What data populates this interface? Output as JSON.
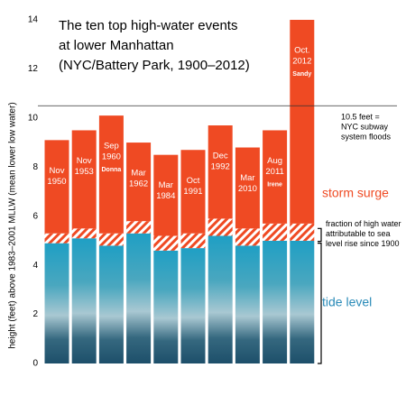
{
  "chart_data": {
    "type": "stacked_bar",
    "title": [
      "The ten top high-water events",
      "at lower Manhattan",
      "(NYC/Battery Park, 1900–2012)"
    ],
    "y_label": "height (feet) above 1983–2001 MLLW (mean lower low water)",
    "categories": [
      [
        "Nov",
        "1950"
      ],
      [
        "Nov",
        "1953"
      ],
      [
        "Sep",
        "1960"
      ],
      [
        "Mar",
        "1962"
      ],
      [
        "Mar",
        "1984"
      ],
      [
        "Oct",
        "1991"
      ],
      [
        "Dec",
        "1992"
      ],
      [
        "Mar",
        "2010"
      ],
      [
        "Aug",
        "2011"
      ],
      [
        "Oct.",
        "2012"
      ]
    ],
    "storm_names": [
      null,
      null,
      "Donna",
      null,
      null,
      null,
      null,
      null,
      "Irene",
      "Sandy"
    ],
    "series": [
      {
        "name": "tide level",
        "color": "#2a8bb8",
        "values": [
          4.9,
          5.1,
          4.8,
          5.3,
          4.6,
          4.7,
          5.2,
          4.8,
          5.0,
          5.0
        ]
      },
      {
        "name": "fraction of high water attributable to sea level rise since 1900",
        "color": "#ef4a23",
        "values": [
          0.4,
          0.4,
          0.5,
          0.5,
          0.6,
          0.6,
          0.7,
          0.7,
          0.7,
          0.7
        ]
      },
      {
        "name": "storm surge",
        "color": "#ef4a23",
        "values": [
          3.8,
          4.0,
          4.8,
          3.2,
          3.3,
          3.4,
          3.8,
          3.3,
          3.8,
          8.3
        ]
      }
    ],
    "reference_line": {
      "value": 10.5,
      "label": [
        "10.5 feet =",
        "NYC subway",
        "system floods"
      ]
    },
    "ylim": [
      0,
      14
    ],
    "yticks": [
      0,
      2,
      4,
      6,
      8,
      10,
      12,
      14
    ]
  }
}
